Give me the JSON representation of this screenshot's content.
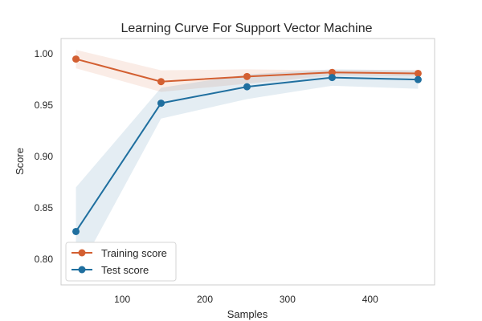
{
  "chart_data": {
    "type": "line",
    "title": "Learning Curve For Support Vector Machine",
    "xlabel": "Samples",
    "ylabel": "Score",
    "xlim": [
      26,
      478
    ],
    "ylim": [
      0.775,
      1.015
    ],
    "xticks": [
      100,
      200,
      300,
      400
    ],
    "yticks": [
      0.8,
      0.85,
      0.9,
      0.95,
      1.0
    ],
    "xtick_labels": [
      "100",
      "200",
      "300",
      "400"
    ],
    "ytick_labels": [
      "0.80",
      "0.85",
      "0.90",
      "0.95",
      "1.00"
    ],
    "grid": false,
    "legend_position": "lower-left",
    "x": [
      44,
      147,
      251,
      354,
      458
    ],
    "series": [
      {
        "name": "Training score",
        "color": "#d35f31",
        "values": [
          0.995,
          0.973,
          0.978,
          0.982,
          0.981
        ],
        "upper": [
          1.004,
          0.984,
          0.985,
          0.984,
          0.984
        ],
        "lower": [
          0.986,
          0.963,
          0.971,
          0.979,
          0.978
        ]
      },
      {
        "name": "Test score",
        "color": "#1f6f9f",
        "values": [
          0.827,
          0.952,
          0.968,
          0.977,
          0.975
        ],
        "upper": [
          0.87,
          0.967,
          0.98,
          0.985,
          0.984
        ],
        "lower": [
          0.784,
          0.937,
          0.956,
          0.969,
          0.966
        ]
      }
    ]
  }
}
